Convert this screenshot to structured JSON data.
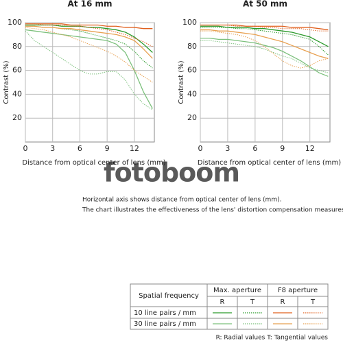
{
  "chart_data": [
    {
      "type": "line",
      "title": "At 16 mm",
      "x_label": "Distance from optical center of lens (mm)",
      "y_label": "Contrast (%)",
      "x": [
        0,
        1,
        2,
        3,
        4,
        5,
        6,
        7,
        8,
        9,
        10,
        11,
        12,
        13,
        14
      ],
      "xlim": [
        0,
        14.2
      ],
      "xticks": [
        0,
        3,
        6,
        9,
        12
      ],
      "ylim": [
        0,
        100
      ],
      "yticks": [
        20,
        40,
        60,
        80,
        100
      ],
      "grid": true,
      "series": [
        {
          "color": "#2a9a2a",
          "style": "solid",
          "values": [
            98,
            98,
            98,
            98,
            97,
            97,
            97,
            96,
            96,
            95,
            94,
            92,
            88,
            82,
            75
          ]
        },
        {
          "color": "#2a9a2a",
          "style": "dotted",
          "values": [
            97,
            97,
            96,
            96,
            95,
            94,
            93,
            91,
            89,
            87,
            85,
            82,
            76,
            68,
            62
          ]
        },
        {
          "color": "#e0601e",
          "style": "solid",
          "values": [
            99,
            99,
            99,
            99,
            99,
            98,
            98,
            98,
            98,
            97,
            97,
            96,
            96,
            95,
            95
          ]
        },
        {
          "color": "#e0601e",
          "style": "dotted",
          "values": [
            99,
            99,
            98,
            98,
            98,
            97,
            97,
            96,
            95,
            94,
            92,
            90,
            87,
            84,
            80
          ]
        },
        {
          "color": "#7cc07c",
          "style": "solid",
          "values": [
            94,
            93,
            92,
            91,
            90,
            89,
            88,
            87,
            86,
            85,
            82,
            75,
            60,
            42,
            28
          ]
        },
        {
          "color": "#7cc07c",
          "style": "dotted",
          "values": [
            93,
            85,
            80,
            75,
            70,
            65,
            60,
            57,
            57,
            59,
            59,
            52,
            40,
            32,
            27
          ]
        },
        {
          "color": "#e8a050",
          "style": "solid",
          "values": [
            97,
            97,
            96,
            96,
            95,
            95,
            94,
            93,
            92,
            91,
            90,
            88,
            85,
            78,
            70
          ]
        },
        {
          "color": "#e8a050",
          "style": "dotted",
          "values": [
            96,
            95,
            94,
            92,
            90,
            88,
            85,
            82,
            79,
            76,
            72,
            67,
            60,
            55,
            50
          ]
        }
      ]
    },
    {
      "type": "line",
      "title": "At 50 mm",
      "x_label": "Distance from optical center of lens (mm)",
      "y_label": "Contrast (%)",
      "x": [
        0,
        1,
        2,
        3,
        4,
        5,
        6,
        7,
        8,
        9,
        10,
        11,
        12,
        13,
        14
      ],
      "xlim": [
        0,
        14.2
      ],
      "xticks": [
        0,
        3,
        6,
        9,
        12
      ],
      "ylim": [
        0,
        100
      ],
      "yticks": [
        20,
        40,
        60,
        80,
        100
      ],
      "grid": true,
      "series": [
        {
          "color": "#2a9a2a",
          "style": "solid",
          "values": [
            97,
            97,
            97,
            96,
            96,
            96,
            95,
            95,
            94,
            93,
            92,
            90,
            88,
            84,
            80
          ]
        },
        {
          "color": "#2a9a2a",
          "style": "dotted",
          "values": [
            96,
            96,
            96,
            96,
            95,
            95,
            94,
            93,
            92,
            91,
            90,
            88,
            86,
            80,
            73
          ]
        },
        {
          "color": "#e0601e",
          "style": "solid",
          "values": [
            98,
            98,
            98,
            98,
            98,
            97,
            97,
            97,
            97,
            97,
            96,
            96,
            96,
            95,
            94
          ]
        },
        {
          "color": "#e0601e",
          "style": "dotted",
          "values": [
            98,
            98,
            98,
            98,
            97,
            97,
            97,
            96,
            96,
            95,
            95,
            95,
            94,
            93,
            93
          ]
        },
        {
          "color": "#7cc07c",
          "style": "solid",
          "values": [
            87,
            87,
            86,
            86,
            85,
            84,
            83,
            81,
            79,
            76,
            72,
            68,
            63,
            58,
            55
          ]
        },
        {
          "color": "#7cc07c",
          "style": "dotted",
          "values": [
            85,
            85,
            84,
            83,
            82,
            81,
            80,
            78,
            75,
            72,
            70,
            66,
            62,
            60,
            58
          ]
        },
        {
          "color": "#e8a050",
          "style": "solid",
          "values": [
            94,
            94,
            93,
            93,
            92,
            91,
            90,
            88,
            86,
            84,
            81,
            78,
            75,
            72,
            70
          ]
        },
        {
          "color": "#e8a050",
          "style": "dotted",
          "values": [
            93,
            93,
            92,
            91,
            90,
            88,
            85,
            80,
            74,
            68,
            64,
            62,
            64,
            68,
            70
          ]
        }
      ]
    }
  ],
  "watermark": "fotoboom",
  "notes": [
    "Horizontal axis shows distance from optical center of lens (mm).",
    "The chart illustrates the effectiveness of the lens' distortion compensation measures."
  ],
  "legend": {
    "header": "Spatial frequency",
    "columns": [
      "Max. aperture",
      "F8 aperture"
    ],
    "subcolumns": [
      "R",
      "T",
      "R",
      "T"
    ],
    "rows": [
      "10 line pairs / mm",
      "30 line pairs / mm"
    ]
  },
  "footnote": "R: Radial values  T: Tangential values"
}
